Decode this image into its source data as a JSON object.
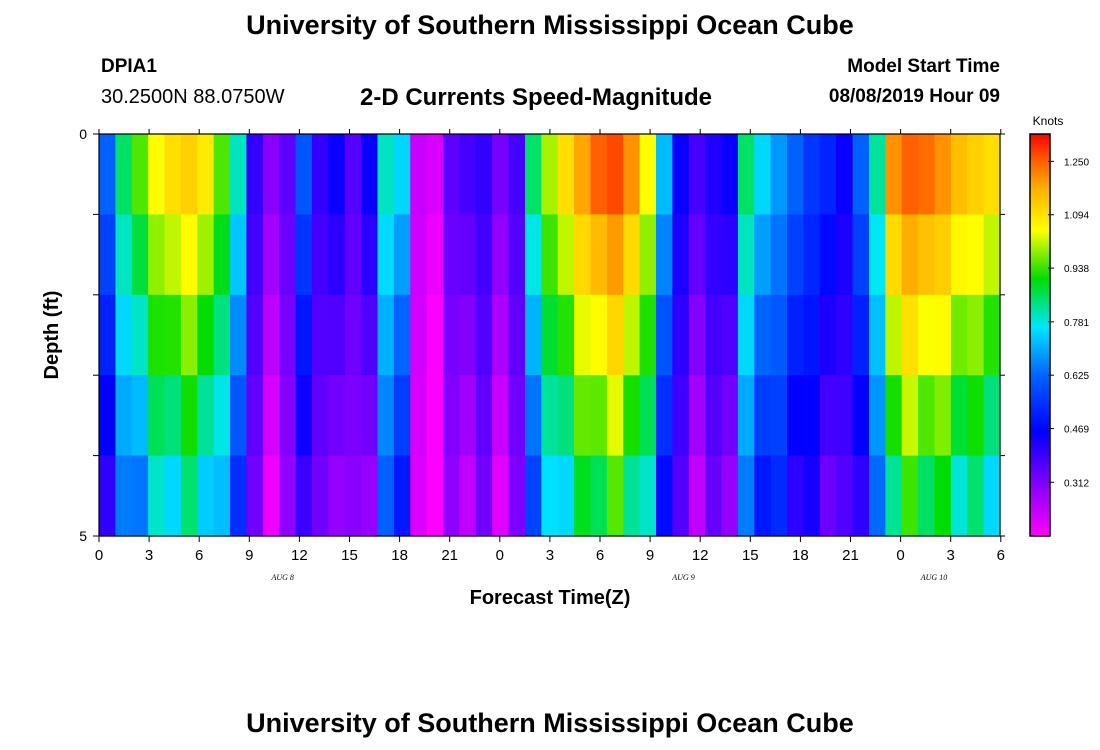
{
  "header": {
    "title": "University of Southern Mississippi Ocean Cube",
    "station_id": "DPIA1",
    "coords": "30.2500N 88.0750W",
    "chart_title": "2-D Currents Speed-Magnitude",
    "model_start_label": "Model Start Time",
    "model_start_value": "08/08/2019 Hour 09"
  },
  "footer": {
    "title": "University of Southern Mississippi Ocean Cube"
  },
  "chart_data": {
    "type": "heatmap",
    "title": "2-D Currents Speed-Magnitude",
    "xlabel": "Forecast Time(Z)",
    "ylabel": "Depth (ft)",
    "y_range": [
      0,
      5
    ],
    "y_tick_labels": [
      "0",
      "5"
    ],
    "x_tick_labels": [
      "0",
      "3",
      "6",
      "9",
      "12",
      "15",
      "18",
      "21",
      "0",
      "3",
      "6",
      "9",
      "12",
      "15",
      "18",
      "21",
      "0",
      "3",
      "6"
    ],
    "date_labels": [
      {
        "text": "AUG 8",
        "hour_index": 11
      },
      {
        "text": "AUG 9",
        "hour_index": 35
      },
      {
        "text": "AUG 10",
        "hour_index": 50
      }
    ],
    "colorbar": {
      "unit": "Knots",
      "min": 0.155,
      "max": 1.33,
      "ticks": [
        "1.250",
        "1.094",
        "0.938",
        "0.781",
        "0.625",
        "0.469",
        "0.312"
      ],
      "tick_values": [
        1.25,
        1.094,
        0.938,
        0.781,
        0.625,
        0.469,
        0.312
      ]
    },
    "depth_layers": 5,
    "hours": [
      0,
      1,
      2,
      3,
      4,
      5,
      6,
      7,
      8,
      9,
      10,
      11,
      12,
      13,
      14,
      15,
      16,
      17,
      18,
      19,
      20,
      21,
      22,
      23,
      24,
      25,
      26,
      27,
      28,
      29,
      30,
      31,
      32,
      33,
      34,
      35,
      36,
      37,
      38,
      39,
      40,
      41,
      42,
      43,
      44,
      45,
      46,
      47,
      48,
      49,
      50,
      51,
      52,
      53,
      54
    ],
    "speed_knots_surface": [
      0.62,
      0.85,
      0.95,
      1.05,
      1.1,
      1.12,
      1.08,
      0.95,
      0.8,
      0.4,
      0.3,
      0.35,
      0.6,
      0.4,
      0.45,
      0.36,
      0.45,
      0.8,
      0.75,
      0.22,
      0.2,
      0.35,
      0.38,
      0.4,
      0.32,
      0.38,
      0.85,
      1.0,
      1.1,
      1.18,
      1.25,
      1.27,
      1.2,
      1.05,
      0.72,
      0.45,
      0.38,
      0.42,
      0.45,
      0.85,
      0.75,
      0.68,
      0.62,
      0.55,
      0.52,
      0.45,
      0.62,
      0.82,
      1.2,
      1.25,
      1.24,
      1.2,
      1.15,
      1.12,
      1.1
    ]
  }
}
